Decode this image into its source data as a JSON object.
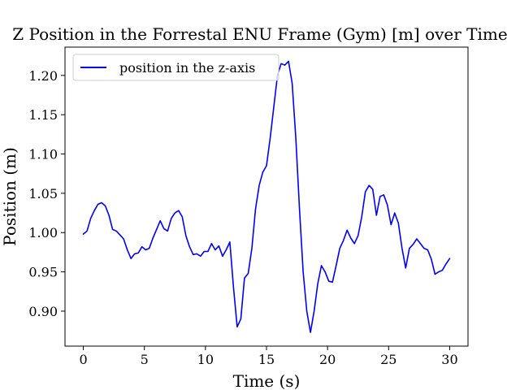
{
  "chart_data": {
    "type": "line",
    "title": "Z Position in the Forrestal ENU Frame (Gym) [m] over Time",
    "xlabel": "Time (s)",
    "ylabel": "Position (m)",
    "xlim": [
      -1.5,
      31.5
    ],
    "ylim": [
      0.8555,
      1.236
    ],
    "xticks": [
      0,
      5,
      10,
      15,
      20,
      25,
      30
    ],
    "xtick_labels": [
      "0",
      "5",
      "10",
      "15",
      "20",
      "25",
      "30"
    ],
    "yticks": [
      0.9,
      0.95,
      1.0,
      1.05,
      1.1,
      1.15,
      1.2
    ],
    "ytick_labels": [
      "0.90",
      "0.95",
      "1.00",
      "1.05",
      "1.10",
      "1.15",
      "1.20"
    ],
    "grid": false,
    "legend_position": "upper-left",
    "series": [
      {
        "name": "position in the z-axis",
        "color": "#0000ff",
        "x": [
          0,
          0.3,
          0.6,
          0.9,
          1.2,
          1.5,
          1.8,
          2.1,
          2.4,
          2.7,
          3.0,
          3.3,
          3.6,
          3.9,
          4.2,
          4.5,
          4.8,
          5.1,
          5.4,
          5.7,
          6.0,
          6.3,
          6.6,
          6.9,
          7.2,
          7.5,
          7.8,
          8.1,
          8.4,
          8.7,
          9.0,
          9.3,
          9.6,
          9.9,
          10.2,
          10.5,
          10.8,
          11.1,
          11.4,
          11.7,
          12.0,
          12.3,
          12.6,
          12.9,
          13.2,
          13.5,
          13.8,
          14.1,
          14.4,
          14.7,
          15.0,
          15.3,
          15.6,
          15.9,
          16.2,
          16.5,
          16.8,
          17.1,
          17.4,
          17.7,
          18.0,
          18.3,
          18.6,
          18.9,
          19.2,
          19.5,
          19.8,
          20.1,
          20.4,
          20.7,
          21.0,
          21.3,
          21.6,
          21.9,
          22.2,
          22.5,
          22.8,
          23.1,
          23.4,
          23.7,
          24.0,
          24.3,
          24.6,
          24.9,
          25.2,
          25.5,
          25.8,
          26.1,
          26.4,
          26.7,
          27.0,
          27.3,
          27.6,
          27.9,
          28.2,
          28.5,
          28.8,
          29.1,
          29.4,
          29.7,
          30.0
        ],
        "y": [
          0.998,
          1.002,
          1.018,
          1.028,
          1.036,
          1.038,
          1.034,
          1.022,
          1.004,
          1.002,
          0.997,
          0.992,
          0.978,
          0.967,
          0.973,
          0.974,
          0.982,
          0.978,
          0.98,
          0.993,
          1.004,
          1.015,
          1.005,
          1.002,
          1.018,
          1.025,
          1.028,
          1.02,
          0.996,
          0.982,
          0.972,
          0.973,
          0.97,
          0.976,
          0.976,
          0.986,
          0.978,
          0.983,
          0.97,
          0.978,
          0.988,
          0.93,
          0.88,
          0.89,
          0.942,
          0.948,
          0.98,
          1.03,
          1.06,
          1.077,
          1.085,
          1.12,
          1.16,
          1.2,
          1.215,
          1.213,
          1.218,
          1.19,
          1.12,
          1.03,
          0.95,
          0.9,
          0.873,
          0.9,
          0.935,
          0.958,
          0.95,
          0.938,
          0.937,
          0.958,
          0.98,
          0.99,
          1.003,
          0.993,
          0.986,
          0.996,
          1.02,
          1.052,
          1.06,
          1.055,
          1.022,
          1.046,
          1.048,
          1.035,
          1.01,
          1.025,
          1.012,
          0.98,
          0.955,
          0.98,
          0.985,
          0.992,
          0.986,
          0.98,
          0.978,
          0.966,
          0.947,
          0.95,
          0.952,
          0.96,
          0.967
        ]
      }
    ]
  }
}
